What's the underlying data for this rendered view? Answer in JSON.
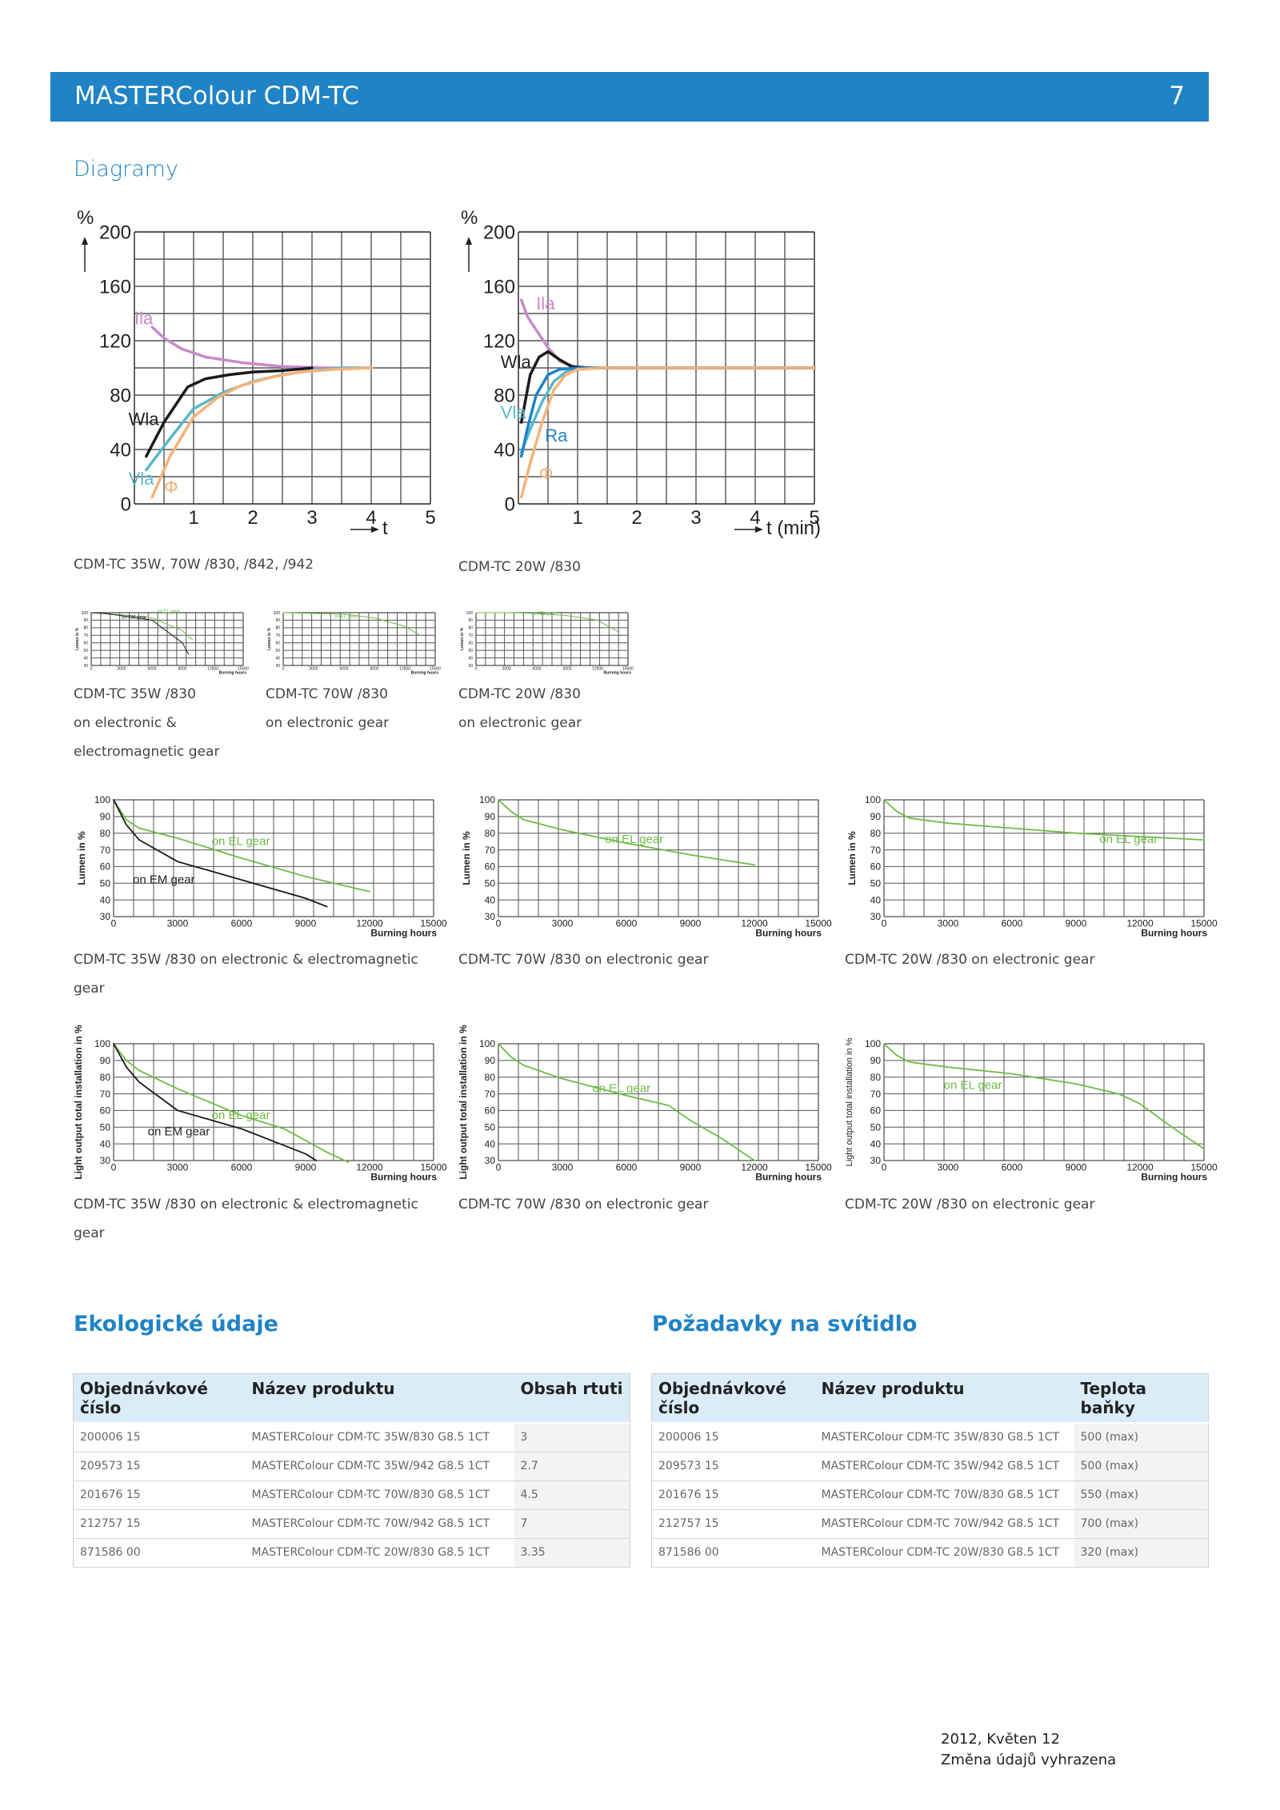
{
  "header": {
    "title": "MASTERColour CDM-TC",
    "page_number": "7"
  },
  "section_heading": "Diagramy",
  "captions": {
    "c1": "CDM-TC 35W, 70W /830, /842, /942",
    "c2": "CDM-TC 20W /830",
    "s1a": "CDM-TC 35W /830",
    "s1b": "on electronic &",
    "s1c": "electromagnetic gear",
    "s2a": "CDM-TC 70W /830",
    "s2b": "on electronic gear",
    "s3a": "CDM-TC 20W /830",
    "s3b": "on electronic gear",
    "m1a": "CDM-TC 35W /830 on electronic & electromagnetic",
    "m1b": "gear",
    "m2": "CDM-TC 70W /830 on electronic gear",
    "m3": "CDM-TC 20W /830 on electronic gear",
    "l1a": "CDM-TC 35W /830 on electronic & electromagnetic",
    "l1b": "gear",
    "l2": "CDM-TC 70W /830 on electronic gear",
    "l3": "CDM-TC 20W /830 on electronic gear"
  },
  "chart_data": [
    {
      "id": "startup-35-70",
      "type": "line",
      "ylabel": "%",
      "xlabel": "t",
      "ylim": [
        0,
        200
      ],
      "xlim": [
        0,
        5
      ],
      "yticks": [
        "0",
        "40",
        "80",
        "120",
        "160",
        "200"
      ],
      "xticks": [
        "1",
        "2",
        "3",
        "4",
        "5"
      ],
      "series": [
        {
          "name": "Ila",
          "color": "#c88ac8",
          "x": [
            0.3,
            0.5,
            0.8,
            1.2,
            1.8,
            2.5,
            3.3,
            4.0
          ],
          "y": [
            130,
            122,
            114,
            108,
            104,
            101,
            100,
            100
          ]
        },
        {
          "name": "Wla",
          "color": "#1a1a1a",
          "x": [
            0.2,
            0.5,
            0.9,
            1.2,
            1.6,
            2.0,
            2.5,
            3.0
          ],
          "y": [
            35,
            60,
            86,
            92,
            95,
            97,
            98,
            100
          ]
        },
        {
          "name": "Vla",
          "color": "#58b8c8",
          "x": [
            0.2,
            0.6,
            1.0,
            1.5,
            2.0,
            2.5,
            3.0,
            3.5,
            4.0
          ],
          "y": [
            25,
            48,
            70,
            82,
            90,
            95,
            98,
            100,
            100
          ]
        },
        {
          "name": "Φ",
          "color": "#f4b27a",
          "x": [
            0.3,
            0.6,
            1.0,
            1.4,
            1.8,
            2.3,
            2.8,
            3.4,
            4.0
          ],
          "y": [
            5,
            35,
            64,
            78,
            87,
            93,
            97,
            99,
            100
          ]
        }
      ]
    },
    {
      "id": "startup-20",
      "type": "line",
      "ylabel": "%",
      "xlabel": "t (min)",
      "ylim": [
        0,
        200
      ],
      "xlim": [
        0,
        5
      ],
      "yticks": [
        "0",
        "40",
        "80",
        "120",
        "160",
        "200"
      ],
      "xticks": [
        "1",
        "2",
        "3",
        "4",
        "5"
      ],
      "series": [
        {
          "name": "Ila",
          "color": "#c88ac8",
          "x": [
            0.05,
            0.15,
            0.3,
            0.5,
            0.7,
            1.0,
            1.5,
            5.0
          ],
          "y": [
            150,
            138,
            128,
            115,
            105,
            100,
            100,
            100
          ]
        },
        {
          "name": "Wla",
          "color": "#1a1a1a",
          "x": [
            0.05,
            0.2,
            0.35,
            0.5,
            0.7,
            0.9,
            1.2,
            5.0
          ],
          "y": [
            60,
            95,
            108,
            112,
            106,
            101,
            100,
            100
          ]
        },
        {
          "name": "Vla",
          "color": "#58b8c8",
          "x": [
            0.05,
            0.2,
            0.4,
            0.6,
            0.8,
            1.0,
            1.4,
            5.0
          ],
          "y": [
            38,
            55,
            75,
            90,
            97,
            99,
            100,
            100
          ]
        },
        {
          "name": "Ra",
          "color": "#1f83c6",
          "x": [
            0.05,
            0.15,
            0.3,
            0.5,
            0.7,
            1.0,
            5.0
          ],
          "y": [
            35,
            55,
            80,
            95,
            99,
            100,
            100
          ]
        },
        {
          "name": "Φ",
          "color": "#f4b27a",
          "x": [
            0.05,
            0.2,
            0.4,
            0.6,
            0.8,
            1.0,
            1.4,
            5.0
          ],
          "y": [
            5,
            30,
            60,
            84,
            95,
            99,
            100,
            100
          ]
        }
      ]
    },
    {
      "id": "lumen-35",
      "type": "line",
      "ylabel": "Lumen in %",
      "xlabel": "Burning hours",
      "ylim": [
        30,
        100
      ],
      "xlim": [
        0,
        15000
      ],
      "yticks": [
        "30",
        "40",
        "50",
        "60",
        "70",
        "80",
        "90",
        "100"
      ],
      "xticks": [
        "0",
        "3000",
        "6000",
        "9000",
        "12000",
        "15000"
      ],
      "series": [
        {
          "name": "on EL gear",
          "color": "#6cbd45",
          "x": [
            0,
            600,
            1200,
            3000,
            6000,
            9000,
            12000
          ],
          "y": [
            100,
            88,
            83,
            77,
            65,
            54,
            45
          ]
        },
        {
          "name": "on EM gear",
          "color": "#1a1a1a",
          "x": [
            0,
            600,
            1200,
            3000,
            6000,
            9000,
            10000
          ],
          "y": [
            100,
            85,
            76,
            63,
            52,
            41,
            36
          ]
        }
      ]
    },
    {
      "id": "lumen-70",
      "type": "line",
      "ylabel": "Lumen in %",
      "xlabel": "Burning hours",
      "ylim": [
        30,
        100
      ],
      "xlim": [
        0,
        15000
      ],
      "yticks": [
        "30",
        "40",
        "50",
        "60",
        "70",
        "80",
        "90",
        "100"
      ],
      "xticks": [
        "0",
        "3000",
        "6000",
        "9000",
        "12000",
        "15000"
      ],
      "series": [
        {
          "name": "on EL gear",
          "color": "#6cbd45",
          "x": [
            0,
            600,
            1200,
            3000,
            6000,
            9000,
            12000
          ],
          "y": [
            100,
            93,
            88,
            82,
            74,
            67,
            61
          ]
        }
      ]
    },
    {
      "id": "lumen-20",
      "type": "line",
      "ylabel": "Lumen in %",
      "xlabel": "Burning hours",
      "ylim": [
        30,
        100
      ],
      "xlim": [
        0,
        15000
      ],
      "yticks": [
        "30",
        "40",
        "50",
        "60",
        "70",
        "80",
        "90",
        "100"
      ],
      "xticks": [
        "0",
        "3000",
        "6000",
        "9000",
        "12000",
        "15000"
      ],
      "series": [
        {
          "name": "on EL gear",
          "color": "#6cbd45",
          "x": [
            0,
            600,
            1200,
            3000,
            6000,
            9000,
            12000,
            15000
          ],
          "y": [
            100,
            93,
            89,
            86,
            83,
            80,
            78,
            76
          ]
        }
      ]
    },
    {
      "id": "lo-35",
      "type": "line",
      "ylabel": "Light output total installation in %",
      "xlabel": "Burning hours",
      "ylim": [
        30,
        100
      ],
      "xlim": [
        0,
        15000
      ],
      "yticks": [
        "30",
        "40",
        "50",
        "60",
        "70",
        "80",
        "90",
        "100"
      ],
      "xticks": [
        "0",
        "3000",
        "6000",
        "9000",
        "12000",
        "15000"
      ],
      "series": [
        {
          "name": "on EL gear",
          "color": "#6cbd45",
          "x": [
            0,
            600,
            1200,
            3000,
            6000,
            8000,
            9000,
            10000,
            11000
          ],
          "y": [
            100,
            90,
            84,
            73,
            57,
            49,
            42,
            35,
            29
          ]
        },
        {
          "name": "on EM gear",
          "color": "#1a1a1a",
          "x": [
            0,
            600,
            1200,
            3000,
            6000,
            8000,
            9000,
            9500
          ],
          "y": [
            100,
            86,
            77,
            60,
            49,
            39,
            34,
            30
          ]
        }
      ]
    },
    {
      "id": "lo-70",
      "type": "line",
      "ylabel": "Light output total installation in %",
      "xlabel": "Burning hours",
      "ylim": [
        30,
        100
      ],
      "xlim": [
        0,
        15000
      ],
      "yticks": [
        "30",
        "40",
        "50",
        "60",
        "70",
        "80",
        "90",
        "100"
      ],
      "xticks": [
        "0",
        "3000",
        "6000",
        "9000",
        "12000",
        "15000"
      ],
      "series": [
        {
          "name": "on EL gear",
          "color": "#6cbd45",
          "x": [
            0,
            600,
            1200,
            3000,
            6000,
            8000,
            9000,
            10500,
            12000
          ],
          "y": [
            100,
            92,
            87,
            79,
            69,
            63,
            54,
            43,
            30
          ]
        }
      ]
    },
    {
      "id": "lo-20",
      "type": "line",
      "ylabel": "Light output total installation in %",
      "xlabel": "Burning hours",
      "ylim": [
        30,
        100
      ],
      "xlim": [
        0,
        15000
      ],
      "yticks": [
        "30",
        "40",
        "50",
        "60",
        "70",
        "80",
        "90",
        "100"
      ],
      "xticks": [
        "0",
        "3000",
        "6000",
        "9000",
        "12000",
        "15000"
      ],
      "series": [
        {
          "name": "on EL gear",
          "color": "#6cbd45",
          "x": [
            0,
            600,
            1200,
            3000,
            6000,
            9000,
            11000,
            12000,
            13500,
            15000
          ],
          "y": [
            100,
            93,
            89,
            86,
            82,
            76,
            70,
            64,
            50,
            37
          ]
        }
      ]
    },
    {
      "id": "small-35",
      "type": "line",
      "ylabel": "Lumen in %",
      "xlabel": "Burning hours",
      "ylim": [
        30,
        100
      ],
      "xlim": [
        0,
        15000
      ],
      "yticks": [
        "30",
        "40",
        "50",
        "60",
        "70",
        "80",
        "90",
        "100"
      ],
      "xticks": [
        "0",
        "3000",
        "6000",
        "9000",
        "12000",
        "15000"
      ],
      "series": [
        {
          "name": "on EL gear",
          "color": "#6cbd45",
          "x": [
            0,
            1200,
            3000,
            6000,
            9000,
            10000
          ],
          "y": [
            100,
            99,
            97,
            93,
            76,
            64
          ]
        },
        {
          "name": "on EM gear",
          "color": "#1a1a1a",
          "x": [
            0,
            1200,
            3000,
            6000,
            9000,
            9600
          ],
          "y": [
            100,
            99,
            96,
            90,
            60,
            45
          ]
        }
      ]
    },
    {
      "id": "small-70",
      "type": "line",
      "ylabel": "Lumen in %",
      "xlabel": "Burning hours",
      "ylim": [
        30,
        100
      ],
      "xlim": [
        0,
        15000
      ],
      "yticks": [
        "30",
        "40",
        "50",
        "60",
        "70",
        "80",
        "90",
        "100"
      ],
      "xticks": [
        "0",
        "3000",
        "6000",
        "9000",
        "12000",
        "15000"
      ],
      "series": [
        {
          "name": "on EL gear",
          "color": "#6cbd45",
          "x": [
            0,
            3000,
            6000,
            9000,
            12000,
            13500
          ],
          "y": [
            100,
            99,
            98,
            93,
            82,
            70
          ]
        }
      ]
    },
    {
      "id": "small-20",
      "type": "line",
      "ylabel": "Lumen in %",
      "xlabel": "Burning hours",
      "ylim": [
        30,
        100
      ],
      "xlim": [
        0,
        15000
      ],
      "yticks": [
        "30",
        "40",
        "50",
        "60",
        "70",
        "80",
        "90",
        "100"
      ],
      "xticks": [
        "0",
        "3000",
        "6000",
        "9000",
        "12000",
        "15000"
      ],
      "series": [
        {
          "name": "on EL gear",
          "color": "#6cbd45",
          "x": [
            0,
            3000,
            6000,
            9000,
            12000,
            14000
          ],
          "y": [
            100,
            100,
            99,
            96,
            90,
            75
          ]
        }
      ]
    }
  ],
  "eco": {
    "title": "Ekologické údaje",
    "headers": [
      "Objednávkové číslo",
      "Název produktu",
      "Obsah rtuti"
    ],
    "rows": [
      [
        "200006 15",
        "MASTERColour CDM-TC 35W/830 G8.5 1CT",
        "3"
      ],
      [
        "209573 15",
        "MASTERColour CDM-TC 35W/942 G8.5 1CT",
        "2.7"
      ],
      [
        "201676 15",
        "MASTERColour CDM-TC 70W/830 G8.5 1CT",
        "4.5"
      ],
      [
        "212757 15",
        "MASTERColour CDM-TC 70W/942 G8.5 1CT",
        "7"
      ],
      [
        "871586 00",
        "MASTERColour CDM-TC 20W/830 G8.5 1CT",
        "3.35"
      ]
    ]
  },
  "req": {
    "title": "Požadavky na svítidlo",
    "headers": [
      "Objednávkové číslo",
      "Název produktu",
      "Teplota baňky"
    ],
    "rows": [
      [
        "200006 15",
        "MASTERColour CDM-TC 35W/830 G8.5 1CT",
        "500 (max)"
      ],
      [
        "209573 15",
        "MASTERColour CDM-TC 35W/942 G8.5 1CT",
        "500 (max)"
      ],
      [
        "201676 15",
        "MASTERColour CDM-TC 70W/830 G8.5 1CT",
        "550 (max)"
      ],
      [
        "212757 15",
        "MASTERColour CDM-TC 70W/942 G8.5 1CT",
        "700 (max)"
      ],
      [
        "871586 00",
        "MASTERColour CDM-TC 20W/830 G8.5 1CT",
        "320 (max)"
      ]
    ]
  },
  "footer": {
    "line1": "2012, Květen 12",
    "line2": "Změna údajů vyhrazena"
  }
}
